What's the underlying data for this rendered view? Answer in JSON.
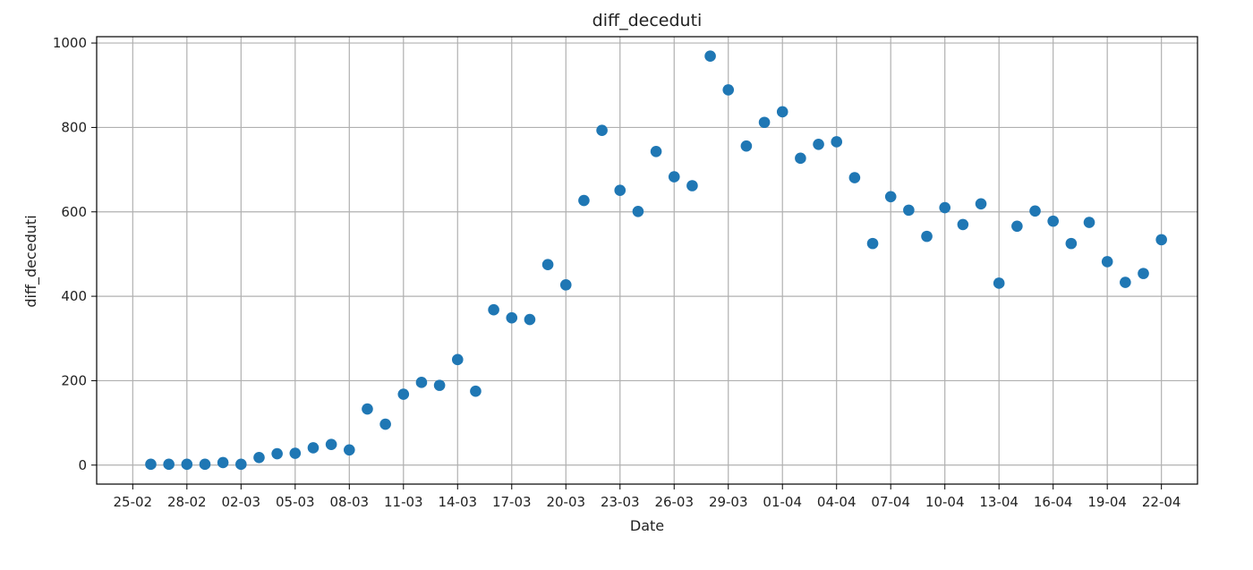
{
  "chart_data": {
    "type": "scatter",
    "title": "diff_deceduti",
    "xlabel": "Date",
    "ylabel": "diff_deceduti",
    "x_tick_labels": [
      "25-02",
      "28-02",
      "02-03",
      "05-03",
      "08-03",
      "11-03",
      "14-03",
      "17-03",
      "20-03",
      "23-03",
      "26-03",
      "29-03",
      "01-04",
      "04-04",
      "07-04",
      "10-04",
      "13-04",
      "16-04",
      "19-04",
      "22-04"
    ],
    "y_ticks": [
      0,
      200,
      400,
      600,
      800,
      1000
    ],
    "ylim": [
      -45,
      1015
    ],
    "xlim": [
      "2020-02-23",
      "2020-04-24"
    ],
    "grid": true,
    "marker_color": "#1f77b4",
    "series": [
      {
        "x": [
          "2020-02-26",
          "2020-02-27",
          "2020-02-28",
          "2020-02-29",
          "2020-03-01",
          "2020-03-02",
          "2020-03-03",
          "2020-03-04",
          "2020-03-05",
          "2020-03-06",
          "2020-03-07",
          "2020-03-08",
          "2020-03-09",
          "2020-03-10",
          "2020-03-11",
          "2020-03-12",
          "2020-03-13",
          "2020-03-14",
          "2020-03-15",
          "2020-03-16",
          "2020-03-17",
          "2020-03-18",
          "2020-03-19",
          "2020-03-20",
          "2020-03-21",
          "2020-03-22",
          "2020-03-23",
          "2020-03-24",
          "2020-03-25",
          "2020-03-26",
          "2020-03-27",
          "2020-03-28",
          "2020-03-29",
          "2020-03-30",
          "2020-03-31",
          "2020-04-01",
          "2020-04-02",
          "2020-04-03",
          "2020-04-04",
          "2020-04-05",
          "2020-04-06",
          "2020-04-07",
          "2020-04-08",
          "2020-04-09",
          "2020-04-10",
          "2020-04-11",
          "2020-04-12",
          "2020-04-13",
          "2020-04-14",
          "2020-04-15",
          "2020-04-16",
          "2020-04-17",
          "2020-04-18",
          "2020-04-19",
          "2020-04-20",
          "2020-04-21",
          "2020-04-22"
        ],
        "y": [
          2,
          2,
          2,
          2,
          6,
          2,
          18,
          27,
          28,
          41,
          49,
          36,
          133,
          97,
          168,
          196,
          189,
          250,
          175,
          368,
          349,
          345,
          475,
          427,
          627,
          793,
          651,
          601,
          743,
          683,
          662,
          969,
          889,
          756,
          812,
          837,
          727,
          760,
          766,
          681,
          525,
          636,
          604,
          542,
          610,
          570,
          619,
          431,
          566,
          602,
          578,
          525,
          575,
          482,
          433,
          454,
          534
        ]
      }
    ]
  }
}
